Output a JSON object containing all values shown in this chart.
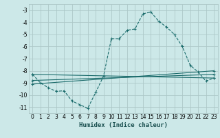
{
  "title": "",
  "xlabel": "Humidex (Indice chaleur)",
  "ylabel": "",
  "bg_color": "#cce8e8",
  "grid_color": "#adc8c8",
  "line_color": "#1a6b6b",
  "xlim": [
    -0.5,
    23.5
  ],
  "ylim": [
    -11.5,
    -2.5
  ],
  "xticks": [
    0,
    1,
    2,
    3,
    4,
    5,
    6,
    7,
    8,
    9,
    10,
    11,
    12,
    13,
    14,
    15,
    16,
    17,
    18,
    19,
    20,
    21,
    22,
    23
  ],
  "yticks": [
    -11,
    -10,
    -9,
    -8,
    -7,
    -6,
    -5,
    -4,
    -3
  ],
  "ytick_labels": [
    "-11",
    "-10",
    "-9",
    "-8",
    "-7",
    "-6",
    "-5",
    "-4",
    "-3"
  ],
  "curve_x": [
    0,
    1,
    2,
    3,
    4,
    5,
    6,
    7,
    8,
    9,
    10,
    11,
    12,
    13,
    14,
    15,
    16,
    17,
    18,
    19,
    20,
    21,
    22,
    23
  ],
  "curve_y": [
    -8.3,
    -9.0,
    -9.4,
    -9.7,
    -9.65,
    -10.5,
    -10.8,
    -11.1,
    -9.8,
    -8.45,
    -5.35,
    -5.35,
    -4.65,
    -4.55,
    -3.3,
    -3.15,
    -3.9,
    -4.4,
    -5.0,
    -6.0,
    -7.55,
    -8.1,
    -8.85,
    -8.6
  ],
  "line1_x": [
    0,
    23
  ],
  "line1_y": [
    -8.3,
    -8.6
  ],
  "line2_x": [
    0,
    23
  ],
  "line2_y": [
    -8.8,
    -8.3
  ],
  "line3_x": [
    0,
    23
  ],
  "line3_y": [
    -9.1,
    -8.0
  ]
}
